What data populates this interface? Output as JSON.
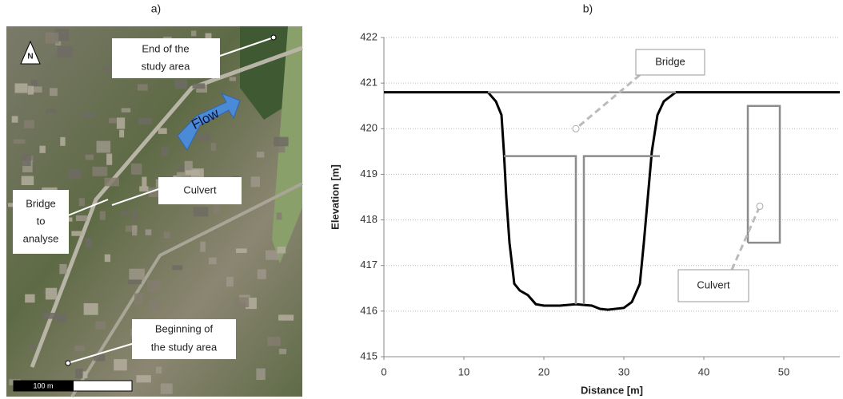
{
  "panel_a": {
    "label": "a)",
    "north": "N",
    "flow": "Flow",
    "end": [
      "End of the",
      "study area"
    ],
    "culvert": "Culvert",
    "bridge": [
      "Bridge",
      "to",
      "analyse"
    ],
    "beginning": [
      "Beginning of",
      "the study area"
    ],
    "scale": "100 m"
  },
  "chart_data": {
    "type": "line",
    "label": "b)",
    "x_label": "Distance [m]",
    "y_label": "Elevation [m]",
    "xlim": [
      0,
      57
    ],
    "xticks": [
      0,
      10,
      20,
      30,
      40,
      50
    ],
    "ylim": [
      415,
      422
    ],
    "yticks": [
      415,
      416,
      417,
      418,
      419,
      420,
      421,
      422
    ],
    "grid": true,
    "series": [
      {
        "color": "#000000",
        "x": [
          0,
          13,
          14,
          14.7,
          15,
          15.3,
          15.7,
          16.3,
          17,
          18,
          19,
          20,
          22,
          24,
          26,
          27,
          28,
          30,
          31,
          32,
          32.5,
          33,
          33.5,
          34.2,
          35,
          36.5,
          57
        ],
        "values": [
          420.8,
          420.8,
          420.6,
          420.3,
          419.5,
          418.5,
          417.5,
          416.6,
          416.45,
          416.35,
          416.15,
          416.12,
          416.12,
          416.15,
          416.12,
          416.05,
          416.03,
          416.07,
          416.2,
          416.6,
          417.5,
          418.5,
          419.5,
          420.3,
          420.6,
          420.8,
          420.8
        ]
      },
      {
        "color": "#8c8c8c",
        "x": [
          13,
          36.5,
          null,
          15,
          24,
          24,
          null,
          25,
          25,
          34.5
        ],
        "values": [
          420.8,
          420.8,
          null,
          419.4,
          419.4,
          416.15,
          null,
          416.15,
          419.4,
          419.4
        ]
      },
      {
        "color": "#8c8c8c",
        "x": [
          45.5,
          49.5,
          49.5,
          45.5,
          45.5
        ],
        "values": [
          417.5,
          417.5,
          420.5,
          420.5,
          417.5
        ]
      }
    ],
    "annotations": [
      "Bridge",
      "Culvert"
    ]
  }
}
